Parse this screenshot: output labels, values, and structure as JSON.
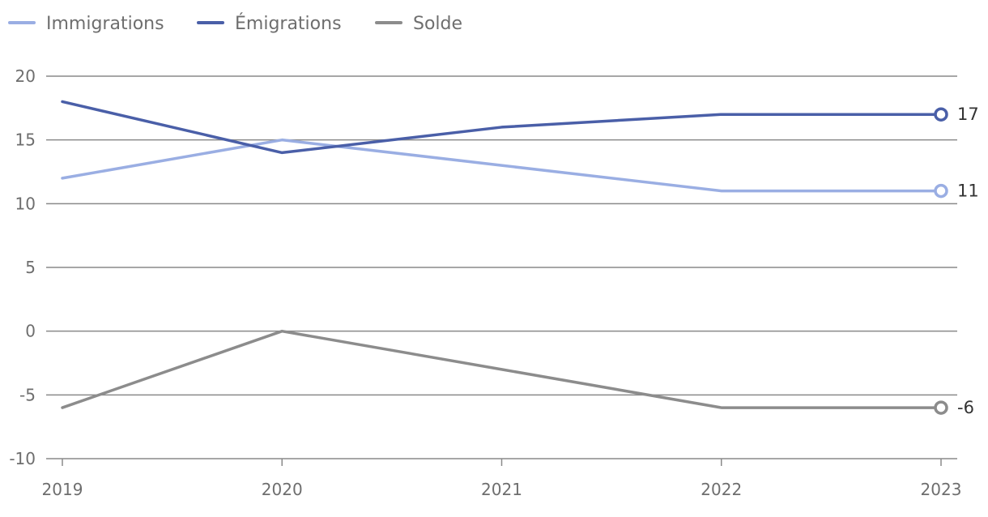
{
  "chart_data": {
    "type": "line",
    "title": "",
    "xlabel": "",
    "ylabel": "",
    "x": [
      "2019",
      "2020",
      "2021",
      "2022",
      "2023"
    ],
    "ylim": [
      -10,
      20
    ],
    "yticks": [
      20,
      15,
      10,
      5,
      0,
      -5,
      -10
    ],
    "ytick_labels": [
      "20",
      "15",
      "10",
      "5",
      "0",
      "-5",
      "-10"
    ],
    "grid": true,
    "legend_position": "top-left",
    "series": [
      {
        "name": "Immigrations",
        "color": "#9aaee3",
        "values": [
          12,
          15,
          13,
          11,
          11
        ],
        "end_label": "11"
      },
      {
        "name": "Émigrations",
        "color": "#4a5fa8",
        "values": [
          18,
          14,
          16,
          17,
          17
        ],
        "end_label": "17"
      },
      {
        "name": "Solde",
        "color": "#8c8c8c",
        "values": [
          -6,
          0,
          -3,
          -6,
          -6
        ],
        "end_label": "-6"
      }
    ]
  }
}
